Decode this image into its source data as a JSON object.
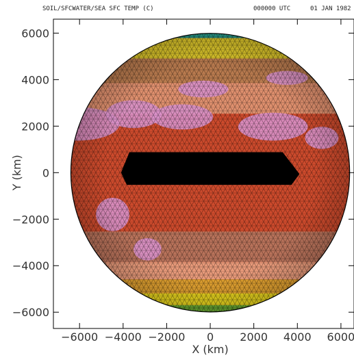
{
  "header": {
    "title": "SOIL/SFCWATER/SEA SFC TEMP (C)",
    "time": "000000 UTC",
    "date": "01 JAN 1982"
  },
  "chart_data": {
    "type": "heatmap",
    "title": "SOIL/SFCWATER/SEA SFC TEMP (C)",
    "xlabel": "X (km)",
    "ylabel": "Y (km)",
    "xlim": [
      -7200,
      6600
    ],
    "ylim": [
      -6700,
      6600
    ],
    "x_ticks": [
      -6000,
      -4000,
      -2000,
      0,
      2000,
      4000,
      6000
    ],
    "y_ticks": [
      6000,
      4000,
      2000,
      0,
      -2000,
      -4000,
      -6000
    ],
    "x_tick_labels": [
      "−6000",
      "−4000",
      "−2000",
      "0",
      "2000",
      "4000",
      "6000"
    ],
    "y_tick_labels": [
      "6000",
      "4000",
      "2000",
      "0",
      "−2000",
      "−4000",
      "−6000"
    ],
    "globe_radius_km": 6400,
    "mesh": "triangular",
    "bands": [
      {
        "lat_range": [
          75,
          90
        ],
        "color": "#2a9e8e"
      },
      {
        "lat_range": [
          55,
          75
        ],
        "color": "#d8c22a"
      },
      {
        "lat_range": [
          40,
          55
        ],
        "color": "#b87a4e"
      },
      {
        "lat_range": [
          25,
          40
        ],
        "color": "#e0906e"
      },
      {
        "lat_range": [
          5,
          25
        ],
        "color": "#cc4a2c"
      },
      {
        "lat_range": [
          -5,
          5
        ],
        "color": "#000000"
      },
      {
        "lat_range": [
          -25,
          -5
        ],
        "color": "#cc4a2c"
      },
      {
        "lat_range": [
          -40,
          -25
        ],
        "color": "#b8725a"
      },
      {
        "lat_range": [
          -50,
          -40
        ],
        "color": "#e89a7a"
      },
      {
        "lat_range": [
          -60,
          -50
        ],
        "color": "#e0a030"
      },
      {
        "lat_range": [
          -72,
          -60
        ],
        "color": "#e6d21e"
      },
      {
        "lat_range": [
          -90,
          -72
        ],
        "color": "#6aa832"
      }
    ],
    "land_color": "#d890c8",
    "grid": false
  }
}
